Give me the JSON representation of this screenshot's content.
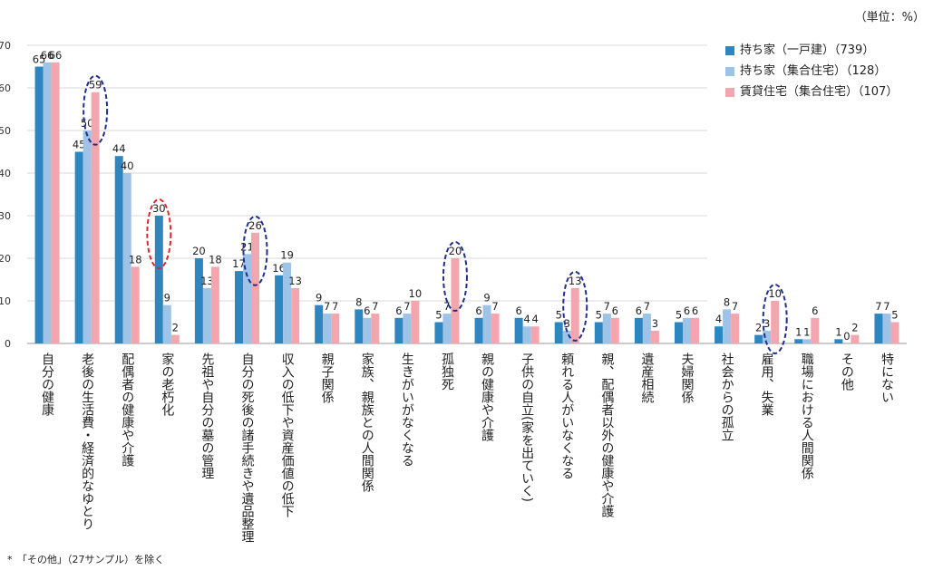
{
  "chart_data": {
    "type": "bar",
    "unit_note": "（単位：%）",
    "footnote": "*　「その他」（27サンプル）を除く",
    "ylim": [
      0,
      70
    ],
    "yticks": [
      0,
      10,
      20,
      30,
      40,
      50,
      60,
      70
    ],
    "grid": true,
    "legend_position": "top-right",
    "categories": [
      "自分の健康",
      "老後の生活費・経済的なゆとり",
      "配偶者の健康や介護",
      "家の老朽化",
      "先祖や自分の墓の管理",
      "自分の死後の諸手続きや遺品整理",
      "収入の低下や資産価値の低下",
      "親子関係",
      "家族、親族との人間関係",
      "生きがいがなくなる",
      "孤独死",
      "親の健康や介護",
      "子供の自立(家を出ていく)",
      "頼れる人がいなくなる",
      "親、配偶者以外の健康や介護",
      "遺産相続",
      "夫婦関係",
      "社会からの孤立",
      "雇用、失業",
      "職場における人間関係",
      "その他",
      "特にない"
    ],
    "series": [
      {
        "name": "持ち家（一戸建）（739）",
        "color": "#2E86C1",
        "values": [
          65,
          45,
          44,
          30,
          20,
          17,
          16,
          9,
          8,
          6,
          5,
          6,
          6,
          5,
          5,
          6,
          5,
          4,
          2,
          1,
          1,
          7
        ]
      },
      {
        "name": "持ち家（集合住宅）（128）",
        "color": "#9DC3E6",
        "values": [
          66,
          50,
          40,
          9,
          13,
          21,
          19,
          7,
          6,
          7,
          7,
          9,
          4,
          3,
          7,
          7,
          6,
          8,
          3,
          1,
          0,
          7
        ]
      },
      {
        "name": "賃貸住宅（集合住宅）（107）",
        "color": "#F4A6AE",
        "values": [
          66,
          59,
          18,
          2,
          18,
          26,
          13,
          7,
          7,
          10,
          20,
          7,
          4,
          13,
          6,
          3,
          6,
          7,
          10,
          6,
          2,
          5
        ]
      }
    ],
    "highlights": [
      {
        "category_index": 1,
        "series_index": 2,
        "color": "#1F2F8C"
      },
      {
        "category_index": 3,
        "series_index": 0,
        "color": "#D9282F"
      },
      {
        "category_index": 5,
        "series_index": 2,
        "color": "#1F2F8C"
      },
      {
        "category_index": 10,
        "series_index": 2,
        "color": "#1F2F8C"
      },
      {
        "category_index": 13,
        "series_index": 2,
        "color": "#1F2F8C"
      },
      {
        "category_index": 18,
        "series_index": 2,
        "color": "#1F2F8C"
      }
    ]
  }
}
